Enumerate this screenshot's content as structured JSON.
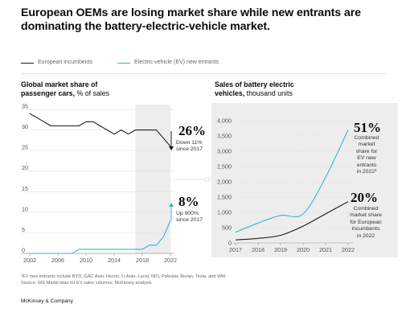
{
  "headline": "European OEMs are losing market share while new entrants are dominating the battery-electric-vehicle market.",
  "legend": [
    {
      "label": "European incumbents",
      "color": "#1a1a1a"
    },
    {
      "label": "Electric-vehicle (EV) new entrants",
      "color": "#37b2d9"
    }
  ],
  "colors": {
    "incumbents": "#1a1a1a",
    "entrants": "#37b2d9",
    "shade": "#ededed"
  },
  "left_chart": {
    "title_bold_1": "Global market share of",
    "title_bold_2": "passenger cars,",
    "title_unit": "% of sales",
    "callout_top": {
      "value": "26%",
      "line1": "Down 11%",
      "line2": "since 2017"
    },
    "callout_bottom": {
      "value": "8%",
      "line1": "Up 900%",
      "line2": "since 2017"
    }
  },
  "right_chart": {
    "title_bold_1": "Sales of battery electric",
    "title_bold_2": "vehicles,",
    "title_unit": "thousand units",
    "callout_top": {
      "value": "51%",
      "lines": [
        "Combined",
        "market",
        "share for",
        "EV new",
        "entrants",
        "in 2022¹"
      ]
    },
    "callout_bottom": {
      "value": "20%",
      "lines": [
        "Combined",
        "market share",
        "for European",
        "incumbents",
        "in 2022"
      ]
    }
  },
  "chart_data": [
    {
      "type": "line",
      "title": "Global market share of passenger cars, % of sales",
      "x_ticks": [
        "2002",
        "2006",
        "2010",
        "2014",
        "2018",
        "2022"
      ],
      "y_ticks": [
        "0",
        "5",
        "10",
        "15",
        "20",
        "25",
        "30",
        "35"
      ],
      "xlim": [
        2002,
        2022
      ],
      "ylim": [
        0,
        35
      ],
      "highlight_range": [
        2017,
        2022
      ],
      "series": [
        {
          "name": "European incumbents",
          "x": [
            2002,
            2003,
            2004,
            2005,
            2006,
            2007,
            2008,
            2009,
            2010,
            2011,
            2012,
            2013,
            2014,
            2015,
            2016,
            2017,
            2018,
            2019,
            2020,
            2021,
            2022
          ],
          "values": [
            34,
            33,
            32,
            31,
            31,
            31,
            31,
            31,
            32,
            32,
            31,
            30,
            29,
            30,
            29,
            30,
            30,
            30,
            30,
            28,
            26
          ]
        },
        {
          "name": "Electric-vehicle (EV) new entrants",
          "x": [
            2002,
            2003,
            2004,
            2005,
            2006,
            2007,
            2008,
            2009,
            2010,
            2011,
            2012,
            2013,
            2014,
            2015,
            2016,
            2017,
            2018,
            2019,
            2020,
            2021,
            2022
          ],
          "values": [
            0,
            0,
            0,
            0,
            0,
            0,
            0,
            1,
            1,
            1,
            1,
            1,
            1,
            1,
            1,
            1,
            1,
            2,
            2,
            4,
            8
          ]
        }
      ]
    },
    {
      "type": "line",
      "title": "Sales of battery electric vehicles, thousand units",
      "x_ticks": [
        "2017",
        "2018",
        "2019",
        "2020",
        "2021",
        "2022"
      ],
      "y_ticks": [
        "0",
        "500",
        "1,000",
        "1,500",
        "2,000",
        "2,500",
        "3,000",
        "3,500",
        "4,000"
      ],
      "xlim": [
        2017,
        2022
      ],
      "ylim": [
        0,
        4000
      ],
      "series": [
        {
          "name": "Electric-vehicle (EV) new entrants",
          "x": [
            2017,
            2018,
            2019,
            2020,
            2021,
            2022
          ],
          "values": [
            350,
            650,
            900,
            950,
            2150,
            3700
          ]
        },
        {
          "name": "European incumbents",
          "x": [
            2017,
            2018,
            2019,
            2020,
            2021,
            2022
          ],
          "values": [
            100,
            150,
            250,
            550,
            950,
            1350
          ]
        }
      ]
    }
  ],
  "footnote_1": "¹EV new entrants include BYD, GAC Aion, Hozon, Li Auto, Lucid, NIO, Polestar, Rivian, Tesla, and WM.",
  "footnote_2": "Source: IHS Markit data for EV sales volumes; McKinsey analysis",
  "brand": "McKinsey & Company"
}
